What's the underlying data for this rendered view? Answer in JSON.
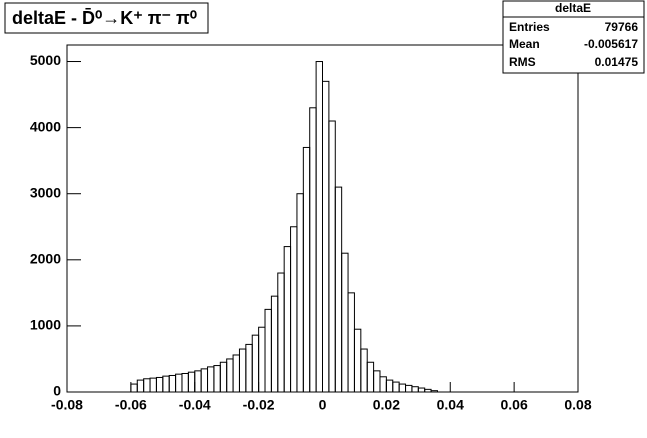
{
  "chart_data": {
    "type": "histogram",
    "title": "deltaE - D̄⁰→K⁺ π⁻ π⁰",
    "stats": {
      "title": "deltaE",
      "rows": [
        [
          "Entries",
          "79766"
        ],
        [
          "Mean",
          "-0.005617"
        ],
        [
          "RMS",
          "0.01475"
        ]
      ]
    },
    "bins": [
      -0.06,
      -0.058,
      -0.056,
      -0.054,
      -0.052,
      -0.05,
      -0.048,
      -0.046,
      -0.044,
      -0.042,
      -0.04,
      -0.038,
      -0.036,
      -0.034,
      -0.032,
      -0.03,
      -0.028,
      -0.026,
      -0.024,
      -0.022,
      -0.02,
      -0.018,
      -0.016,
      -0.014,
      -0.012,
      -0.01,
      -0.008,
      -0.006,
      -0.004,
      -0.002,
      0.0,
      0.002,
      0.004,
      0.006,
      0.008,
      0.01,
      0.012,
      0.014,
      0.016,
      0.018,
      0.02,
      0.022,
      0.024,
      0.026,
      0.028,
      0.03,
      0.032,
      0.034,
      0.036
    ],
    "values": [
      120,
      180,
      200,
      210,
      220,
      240,
      250,
      270,
      280,
      300,
      320,
      350,
      380,
      400,
      450,
      500,
      560,
      650,
      720,
      860,
      980,
      1250,
      1450,
      1800,
      2200,
      2500,
      3000,
      3700,
      4300,
      5000,
      4700,
      4100,
      3100,
      2100,
      1500,
      950,
      650,
      450,
      320,
      230,
      180,
      150,
      120,
      100,
      80,
      60,
      40,
      20
    ],
    "color": "#000000",
    "xlim": [
      -0.08,
      0.08
    ],
    "xticks": [
      -0.08,
      -0.06,
      -0.04,
      -0.02,
      0,
      0.02,
      0.04,
      0.06,
      0.08
    ],
    "ylim": [
      0,
      5250
    ],
    "yticks": [
      0,
      1000,
      2000,
      3000,
      4000,
      5000
    ]
  }
}
